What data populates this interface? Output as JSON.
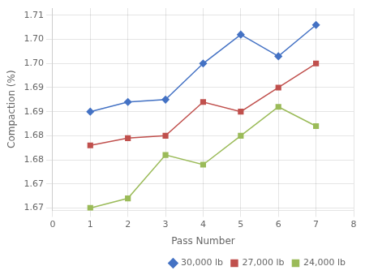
{
  "chart_data": {
    "type": "line",
    "x": [
      1,
      2,
      3,
      4,
      5,
      6,
      7
    ],
    "series": [
      {
        "name": "30,000 lb",
        "color": "#4472C4",
        "marker": "diamond",
        "values": [
          1.69,
          1.692,
          1.6925,
          1.7,
          1.706,
          1.7015,
          1.708
        ]
      },
      {
        "name": "27,000 lb",
        "color": "#C0504D",
        "marker": "square",
        "values": [
          1.683,
          1.6845,
          1.685,
          1.692,
          1.69,
          1.695,
          1.7
        ]
      },
      {
        "name": "24,000 lb",
        "color": "#9BBB59",
        "marker": "square",
        "values": [
          1.67,
          1.672,
          1.681,
          1.679,
          1.685,
          1.691,
          1.687
        ]
      }
    ],
    "xlabel": "Pass Number",
    "ylabel": "Compaction (%)",
    "xlim": [
      0,
      8
    ],
    "ylim": [
      1.6695,
      1.7115
    ],
    "xticks": [
      0,
      1,
      2,
      3,
      4,
      5,
      6,
      7,
      8
    ],
    "yticks": [
      1.67,
      {
        "value": 1.675,
        "label": "1.67"
      },
      1.68,
      {
        "value": 1.685,
        "label": "1.68"
      },
      1.69,
      {
        "value": 1.695,
        "label": "1.69"
      },
      {
        "value": 1.7,
        "label": "1.70"
      },
      {
        "value": 1.705,
        "label": "1.70"
      },
      1.71
    ],
    "grid": true,
    "legend": "lower right"
  }
}
